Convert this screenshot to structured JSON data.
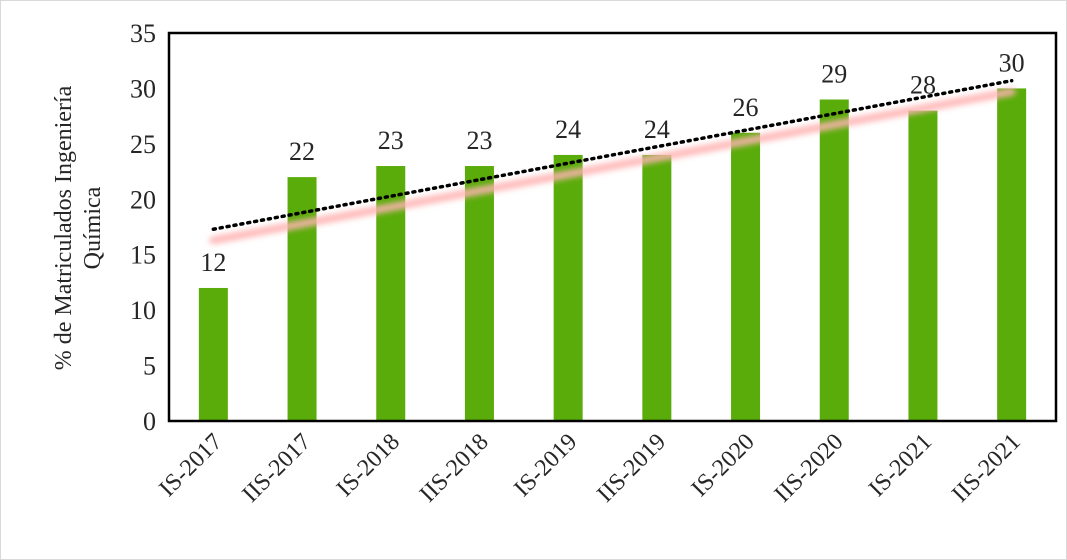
{
  "chart_data": {
    "type": "bar",
    "categories": [
      "IS-2017",
      "IIS-2017",
      "IS-2018",
      "IIS-2018",
      "IS-2019",
      "IIS-2019",
      "IS-2020",
      "IIS-2020",
      "IS-2021",
      "IIS-2021"
    ],
    "series": [
      {
        "values": [
          12,
          22,
          23,
          23,
          24,
          24,
          26,
          29,
          28,
          30
        ],
        "color": "#5aac0a"
      }
    ],
    "data_labels": [
      "12",
      "22",
      "23",
      "23",
      "24",
      "24",
      "26",
      "29",
      "28",
      "30"
    ],
    "ylabel_lines": [
      "% de  Matriculados Ingeniería",
      "Química"
    ],
    "xlabel": "",
    "ylim": [
      0,
      35
    ],
    "yticks": [
      0,
      5,
      10,
      15,
      20,
      25,
      30,
      35
    ],
    "grid": false,
    "trendlines": [
      {
        "style": "dotted",
        "color": "#000000",
        "from": 17.3,
        "to": 30.7
      },
      {
        "style": "glow",
        "color": "#ffb3b3",
        "from": 16.3,
        "to": 29.7
      }
    ]
  }
}
